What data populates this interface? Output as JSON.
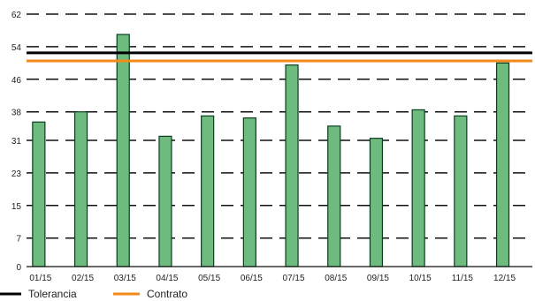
{
  "chart_data": {
    "type": "bar",
    "categories": [
      "01/15",
      "02/15",
      "03/15",
      "04/15",
      "05/15",
      "06/15",
      "07/15",
      "08/15",
      "09/15",
      "10/15",
      "11/15",
      "12/15"
    ],
    "values": [
      35.5,
      38,
      57,
      32,
      37,
      36.5,
      49.5,
      34.5,
      31.5,
      38.5,
      37,
      50
    ],
    "yticks": [
      0,
      7,
      15,
      23,
      31,
      38,
      46,
      54,
      62
    ],
    "ylim": [
      0,
      62
    ],
    "reference_lines": [
      {
        "name": "Tolerancia",
        "value": 52.5,
        "color": "#000000"
      },
      {
        "name": "Contrato",
        "value": 50.5,
        "color": "#f28a1a"
      }
    ],
    "bar_color": "#6dbb7e",
    "bar_edge_color": "#0b3d1c",
    "grid": "dashed-horizontal",
    "legend_placement": "bottom-left"
  }
}
